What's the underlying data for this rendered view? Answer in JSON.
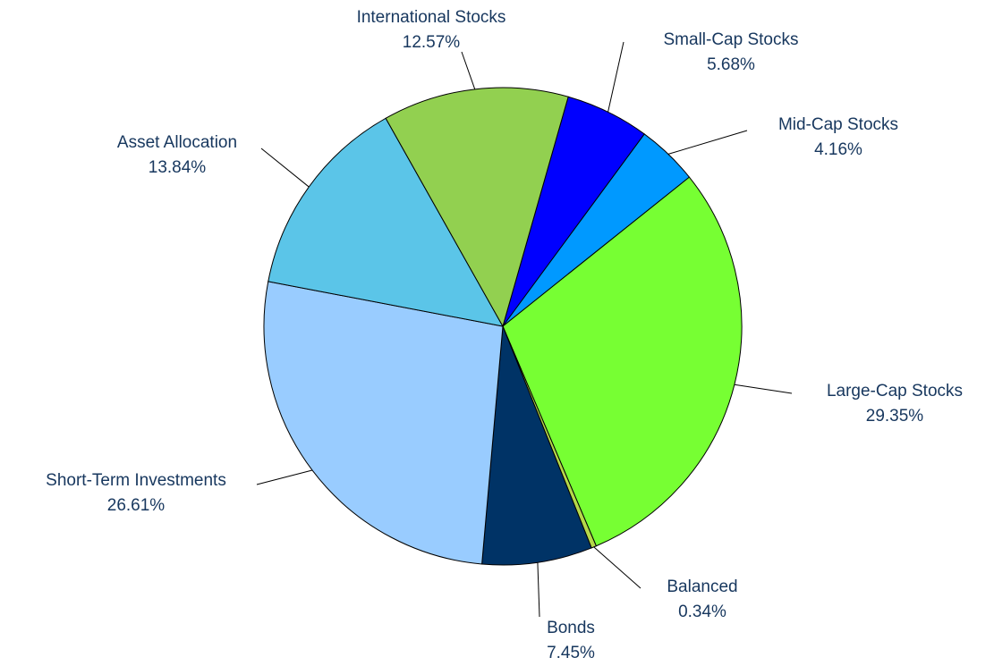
{
  "chart_data": {
    "type": "pie",
    "categories": [
      "Small-Cap Stocks",
      "Mid-Cap Stocks",
      "Large-Cap Stocks",
      "Balanced",
      "Bonds",
      "Short-Term Investments",
      "Asset Allocation",
      "International Stocks"
    ],
    "values": [
      5.68,
      4.16,
      29.35,
      0.34,
      7.45,
      26.61,
      13.84,
      12.57
    ],
    "value_labels": [
      "5.68%",
      "4.16%",
      "29.35%",
      "0.34%",
      "7.45%",
      "26.61%",
      "13.84%",
      "12.57%"
    ],
    "colors": [
      "#0000ff",
      "#0099ff",
      "#77ff33",
      "#b5d84a",
      "#003366",
      "#99ccff",
      "#5bc5e8",
      "#92d050"
    ]
  }
}
